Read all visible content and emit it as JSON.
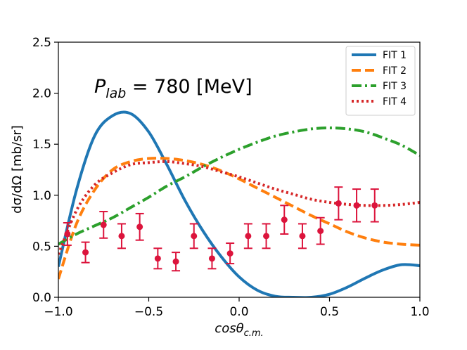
{
  "chart_data": {
    "type": "line",
    "title": "",
    "xlabel": "cosθ",
    "xlabel_sub": "c.m.",
    "ylabel": "dσ/dΩ [mb/sr]",
    "xlim": [
      -1.0,
      1.0
    ],
    "ylim": [
      0.0,
      2.5
    ],
    "xticks": [
      -1.0,
      -0.5,
      0.0,
      0.5,
      1.0
    ],
    "xtick_labels": [
      "−1.0",
      "−0.5",
      "0.0",
      "0.5",
      "1.0"
    ],
    "yticks": [
      0.0,
      0.5,
      1.0,
      1.5,
      2.0,
      2.5
    ],
    "ytick_labels": [
      "0.0",
      "0.5",
      "1.0",
      "1.5",
      "2.0",
      "2.5"
    ],
    "grid": false,
    "legend_position": "top-right",
    "annotation": {
      "main": "P",
      "sub": "lab",
      "rest": " = 780 [MeV]"
    },
    "x": [
      -1.0,
      -0.9,
      -0.8,
      -0.7,
      -0.6,
      -0.5,
      -0.4,
      -0.3,
      -0.2,
      -0.1,
      0.0,
      0.1,
      0.2,
      0.3,
      0.4,
      0.5,
      0.6,
      0.7,
      0.8,
      0.9,
      1.0
    ],
    "series": [
      {
        "name": "FIT 1",
        "color": "#1f77b4",
        "style": "solid",
        "values": [
          0.3,
          1.05,
          1.58,
          1.78,
          1.8,
          1.62,
          1.3,
          0.95,
          0.65,
          0.4,
          0.2,
          0.07,
          0.01,
          0.0,
          0.0,
          0.03,
          0.1,
          0.19,
          0.27,
          0.32,
          0.31
        ]
      },
      {
        "name": "FIT 2",
        "color": "#ff7f0e",
        "style": "dashed",
        "values": [
          0.18,
          0.72,
          1.05,
          1.25,
          1.33,
          1.36,
          1.36,
          1.34,
          1.3,
          1.24,
          1.16,
          1.07,
          0.98,
          0.89,
          0.8,
          0.72,
          0.64,
          0.58,
          0.54,
          0.52,
          0.51
        ]
      },
      {
        "name": "FIT 3",
        "color": "#2ca02c",
        "style": "dashdot",
        "values": [
          0.52,
          0.62,
          0.7,
          0.78,
          0.88,
          0.98,
          1.09,
          1.18,
          1.28,
          1.37,
          1.45,
          1.52,
          1.58,
          1.62,
          1.65,
          1.66,
          1.65,
          1.62,
          1.56,
          1.49,
          1.39
        ]
      },
      {
        "name": "FIT 4",
        "color": "#d62728",
        "style": "dotted",
        "values": [
          0.42,
          0.85,
          1.1,
          1.22,
          1.3,
          1.32,
          1.33,
          1.31,
          1.28,
          1.23,
          1.18,
          1.12,
          1.06,
          1.01,
          0.96,
          0.93,
          0.91,
          0.9,
          0.9,
          0.91,
          0.93
        ]
      }
    ],
    "measurements": {
      "color": "#dc143c",
      "x": [
        -0.95,
        -0.85,
        -0.75,
        -0.65,
        -0.55,
        -0.45,
        -0.35,
        -0.25,
        -0.15,
        -0.05,
        0.05,
        0.15,
        0.25,
        0.35,
        0.45,
        0.55,
        0.65,
        0.75
      ],
      "y": [
        0.62,
        0.44,
        0.71,
        0.6,
        0.69,
        0.38,
        0.35,
        0.6,
        0.38,
        0.43,
        0.6,
        0.6,
        0.76,
        0.6,
        0.65,
        0.92,
        0.9,
        0.9
      ],
      "err": [
        0.11,
        0.1,
        0.13,
        0.12,
        0.13,
        0.1,
        0.09,
        0.12,
        0.1,
        0.1,
        0.12,
        0.12,
        0.14,
        0.12,
        0.13,
        0.16,
        0.16,
        0.16
      ]
    }
  }
}
